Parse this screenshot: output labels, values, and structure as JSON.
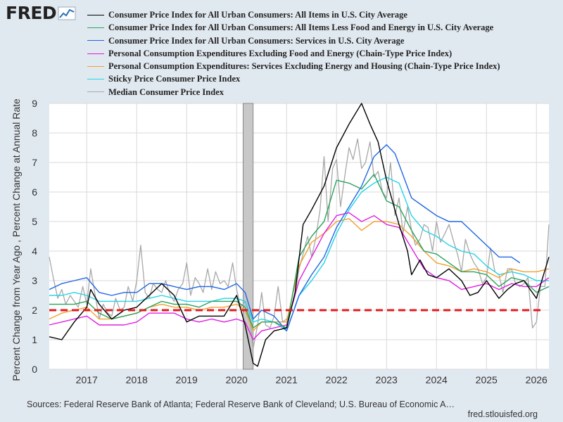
{
  "logo": {
    "text": "FRED",
    "icon": "fred-chart-icon"
  },
  "source": "Sources: Federal Reserve Bank of Atlanta; Federal Reserve Bank of Cleveland; U.S. Bureau of Economic A…",
  "site": "fred.stlouisfed.org",
  "chart_data": {
    "type": "line",
    "title": "",
    "ylabel": "Percent Change from Year Ago , Percent Change at Annual Rate",
    "xlabel": "",
    "ylim": [
      0,
      9
    ],
    "xlim": [
      2016.25,
      2026.25
    ],
    "yticks": [
      "0",
      "1",
      "2",
      "3",
      "4",
      "5",
      "6",
      "7",
      "8",
      "9"
    ],
    "xticks": [
      "2017",
      "2018",
      "2019",
      "2020",
      "2021",
      "2022",
      "2023",
      "2024",
      "2025",
      "2026"
    ],
    "grid": true,
    "legend_position": "top",
    "recession": [
      2020.13,
      2020.33
    ],
    "reference_line": {
      "y": 2,
      "color": "#e41a1c",
      "style": "dashed"
    },
    "series": [
      {
        "name": "Consumer Price Index for All Urban Consumers: All Items in U.S. City Average",
        "color": "#000000",
        "x": [
          2016.25,
          2016.5,
          2016.75,
          2017.0,
          2017.08,
          2017.25,
          2017.5,
          2017.75,
          2018.0,
          2018.25,
          2018.5,
          2018.75,
          2019.0,
          2019.25,
          2019.5,
          2019.75,
          2020.0,
          2020.17,
          2020.33,
          2020.42,
          2020.58,
          2020.75,
          2021.0,
          2021.17,
          2021.33,
          2021.5,
          2021.75,
          2022.0,
          2022.25,
          2022.5,
          2022.67,
          2022.83,
          2023.0,
          2023.25,
          2023.42,
          2023.5,
          2023.67,
          2023.83,
          2024.0,
          2024.25,
          2024.5,
          2024.67,
          2024.83,
          2025.0,
          2025.25,
          2025.42,
          2025.58,
          2025.75,
          2026.0,
          2026.25
        ],
        "y": [
          1.1,
          1.0,
          1.6,
          2.1,
          2.7,
          2.2,
          1.7,
          2.0,
          2.1,
          2.5,
          2.9,
          2.5,
          1.6,
          1.8,
          1.8,
          1.8,
          2.5,
          1.5,
          0.2,
          0.1,
          1.0,
          1.3,
          1.4,
          2.6,
          4.9,
          5.4,
          6.2,
          7.5,
          8.3,
          9.0,
          8.3,
          7.7,
          6.4,
          4.9,
          4.0,
          3.2,
          3.7,
          3.2,
          3.1,
          3.4,
          3.0,
          2.5,
          2.6,
          3.0,
          2.4,
          2.7,
          2.9,
          3.0,
          2.4,
          3.8
        ]
      },
      {
        "name": "Consumer Price Index for All Urban Consumers: All Items Less Food and Energy in U.S. City Average",
        "color": "#2ca25f",
        "x": [
          2016.25,
          2016.5,
          2016.75,
          2017.0,
          2017.25,
          2017.5,
          2017.75,
          2018.0,
          2018.25,
          2018.5,
          2018.75,
          2019.0,
          2019.25,
          2019.5,
          2019.75,
          2020.0,
          2020.17,
          2020.33,
          2020.5,
          2020.75,
          2021.0,
          2021.25,
          2021.5,
          2021.75,
          2022.0,
          2022.25,
          2022.5,
          2022.75,
          2023.0,
          2023.25,
          2023.5,
          2023.75,
          2024.0,
          2024.25,
          2024.5,
          2024.75,
          2025.0,
          2025.25,
          2025.5,
          2025.75,
          2026.0,
          2026.25
        ],
        "y": [
          2.2,
          2.2,
          2.2,
          2.3,
          1.9,
          1.7,
          1.8,
          1.9,
          2.1,
          2.3,
          2.2,
          2.2,
          2.1,
          2.3,
          2.3,
          2.3,
          2.1,
          1.4,
          1.6,
          1.6,
          1.4,
          3.8,
          4.5,
          5.0,
          6.4,
          6.3,
          6.1,
          6.6,
          5.7,
          5.5,
          4.7,
          4.0,
          3.9,
          3.6,
          3.3,
          3.3,
          3.2,
          2.8,
          3.1,
          3.0,
          2.6,
          2.8
        ]
      },
      {
        "name": "Consumer Price Index for All Urban Consumers: Services in U.S. City Average",
        "color": "#1f66e5",
        "x": [
          2016.25,
          2016.5,
          2016.75,
          2017.0,
          2017.25,
          2017.5,
          2017.75,
          2018.0,
          2018.25,
          2018.5,
          2018.75,
          2019.0,
          2019.25,
          2019.5,
          2019.75,
          2020.0,
          2020.17,
          2020.33,
          2020.5,
          2020.75,
          2021.0,
          2021.25,
          2021.5,
          2021.75,
          2022.0,
          2022.25,
          2022.5,
          2022.75,
          2023.0,
          2023.17,
          2023.5,
          2023.75,
          2024.0,
          2024.25,
          2024.5,
          2024.75,
          2025.0,
          2025.25,
          2025.5,
          2025.67
        ],
        "y": [
          2.7,
          2.9,
          3.0,
          3.1,
          2.6,
          2.5,
          2.6,
          2.6,
          2.9,
          2.9,
          2.8,
          2.7,
          2.8,
          2.8,
          2.7,
          2.9,
          2.6,
          1.7,
          2.0,
          1.8,
          1.3,
          2.5,
          3.2,
          3.8,
          4.8,
          5.5,
          6.2,
          7.2,
          7.6,
          7.3,
          5.8,
          5.5,
          5.2,
          5.0,
          5.0,
          4.6,
          4.2,
          3.8,
          3.8,
          3.6
        ]
      },
      {
        "name": "Personal Consumption Expenditures Excluding Food and Energy (Chain-Type Price Index)",
        "color": "#e020e0",
        "x": [
          2016.25,
          2016.5,
          2016.75,
          2017.0,
          2017.25,
          2017.5,
          2017.75,
          2018.0,
          2018.25,
          2018.5,
          2018.75,
          2019.0,
          2019.25,
          2019.5,
          2019.75,
          2020.0,
          2020.17,
          2020.33,
          2020.5,
          2020.75,
          2021.0,
          2021.25,
          2021.5,
          2021.75,
          2022.0,
          2022.25,
          2022.5,
          2022.75,
          2023.0,
          2023.25,
          2023.5,
          2023.75,
          2024.0,
          2024.25,
          2024.5,
          2024.75,
          2025.0,
          2025.25,
          2025.5,
          2025.75,
          2026.0,
          2026.25
        ],
        "y": [
          1.5,
          1.6,
          1.7,
          1.8,
          1.5,
          1.5,
          1.5,
          1.6,
          1.9,
          1.9,
          1.9,
          1.7,
          1.6,
          1.7,
          1.6,
          1.7,
          1.6,
          1.0,
          1.3,
          1.4,
          1.5,
          3.0,
          3.8,
          4.6,
          5.2,
          5.3,
          5.0,
          5.2,
          4.9,
          4.8,
          4.1,
          3.4,
          3.1,
          3.0,
          2.7,
          2.8,
          2.9,
          2.7,
          2.9,
          2.8,
          2.8,
          3.1
        ]
      },
      {
        "name": "Personal Consumption Expenditures: Services Excluding Energy and Housing (Chain-Type Price Index)",
        "color": "#f0a030",
        "x": [
          2016.25,
          2016.5,
          2016.75,
          2017.0,
          2017.25,
          2017.5,
          2017.75,
          2018.0,
          2018.25,
          2018.5,
          2018.75,
          2019.0,
          2019.25,
          2019.5,
          2019.75,
          2020.0,
          2020.17,
          2020.33,
          2020.5,
          2020.75,
          2021.0,
          2021.25,
          2021.5,
          2021.75,
          2022.0,
          2022.25,
          2022.5,
          2022.75,
          2023.0,
          2023.25,
          2023.5,
          2023.75,
          2024.0,
          2024.25,
          2024.5,
          2024.75,
          2025.0,
          2025.25,
          2025.5,
          2025.75,
          2026.0,
          2026.25
        ],
        "y": [
          1.7,
          1.9,
          2.0,
          2.1,
          1.7,
          1.7,
          1.8,
          1.9,
          2.1,
          2.2,
          2.1,
          2.1,
          2.0,
          2.1,
          2.1,
          2.2,
          2.0,
          1.3,
          1.6,
          1.6,
          1.6,
          3.5,
          4.3,
          4.6,
          5.0,
          5.1,
          4.7,
          5.0,
          5.0,
          4.9,
          4.5,
          4.0,
          3.6,
          3.5,
          3.3,
          3.4,
          3.3,
          3.1,
          3.4,
          3.3,
          3.3,
          3.4
        ]
      },
      {
        "name": "Sticky Price Consumer Price Index",
        "color": "#22d4e8",
        "x": [
          2016.25,
          2016.5,
          2016.75,
          2017.0,
          2017.25,
          2017.5,
          2017.75,
          2018.0,
          2018.25,
          2018.5,
          2018.75,
          2019.0,
          2019.25,
          2019.5,
          2019.75,
          2020.0,
          2020.17,
          2020.33,
          2020.5,
          2020.75,
          2021.0,
          2021.25,
          2021.5,
          2021.75,
          2022.0,
          2022.25,
          2022.5,
          2022.75,
          2023.0,
          2023.25,
          2023.5,
          2023.75,
          2024.0,
          2024.25,
          2024.5,
          2024.75,
          2025.0,
          2025.25,
          2025.5,
          2025.75,
          2026.0,
          2026.25
        ],
        "y": [
          2.5,
          2.5,
          2.6,
          2.5,
          2.3,
          2.3,
          2.3,
          2.3,
          2.4,
          2.5,
          2.4,
          2.3,
          2.3,
          2.3,
          2.4,
          2.4,
          2.3,
          1.6,
          1.7,
          1.6,
          1.3,
          2.5,
          3.0,
          3.6,
          4.6,
          5.4,
          6.0,
          6.3,
          6.5,
          6.3,
          5.2,
          4.7,
          4.5,
          4.2,
          4.0,
          3.9,
          3.5,
          3.2,
          3.3,
          3.2,
          3.0,
          3.0
        ]
      },
      {
        "name": "Median Consumer Price Index",
        "color": "#a8a8a8",
        "x": [
          2016.25,
          2016.33,
          2016.42,
          2016.5,
          2016.58,
          2016.67,
          2016.75,
          2016.83,
          2016.92,
          2017.0,
          2017.08,
          2017.17,
          2017.25,
          2017.33,
          2017.42,
          2017.5,
          2017.58,
          2017.67,
          2017.75,
          2017.83,
          2017.92,
          2018.0,
          2018.08,
          2018.17,
          2018.25,
          2018.33,
          2018.42,
          2018.5,
          2018.58,
          2018.67,
          2018.75,
          2018.83,
          2018.92,
          2019.0,
          2019.08,
          2019.17,
          2019.25,
          2019.33,
          2019.42,
          2019.5,
          2019.58,
          2019.67,
          2019.75,
          2019.83,
          2019.92,
          2020.0,
          2020.08,
          2020.17,
          2020.25,
          2020.33,
          2020.42,
          2020.5,
          2020.58,
          2020.67,
          2020.75,
          2020.83,
          2020.92,
          2021.0,
          2021.08,
          2021.17,
          2021.25,
          2021.33,
          2021.42,
          2021.5,
          2021.58,
          2021.67,
          2021.75,
          2021.83,
          2021.92,
          2022.0,
          2022.08,
          2022.17,
          2022.25,
          2022.33,
          2022.42,
          2022.5,
          2022.58,
          2022.67,
          2022.75,
          2022.83,
          2022.92,
          2023.0,
          2023.08,
          2023.17,
          2023.25,
          2023.33,
          2023.42,
          2023.5,
          2023.58,
          2023.67,
          2023.75,
          2023.83,
          2023.92,
          2024.0,
          2024.08,
          2024.17,
          2024.25,
          2024.33,
          2024.42,
          2024.5,
          2024.58,
          2024.67,
          2024.75,
          2024.83,
          2024.92,
          2025.0,
          2025.08,
          2025.17,
          2025.25,
          2025.33,
          2025.42,
          2025.5,
          2025.58,
          2025.67,
          2025.75,
          2025.83,
          2025.92,
          2026.0,
          2026.08,
          2026.17,
          2026.25
        ],
        "y": [
          3.8,
          3.1,
          2.4,
          2.7,
          2.2,
          2.5,
          2.3,
          2.1,
          2.8,
          2.2,
          3.4,
          2.5,
          1.7,
          2.2,
          1.9,
          1.8,
          2.4,
          2.0,
          2.1,
          2.8,
          2.3,
          3.0,
          4.2,
          2.6,
          2.4,
          2.9,
          2.7,
          2.6,
          3.0,
          2.5,
          2.3,
          2.7,
          2.9,
          3.6,
          2.5,
          3.1,
          2.9,
          2.6,
          3.4,
          2.7,
          3.3,
          2.9,
          3.0,
          2.8,
          3.6,
          2.7,
          2.1,
          2.3,
          1.9,
          0.7,
          1.5,
          2.6,
          1.5,
          1.4,
          1.8,
          2.8,
          1.6,
          1.7,
          2.0,
          2.5,
          3.4,
          3.9,
          4.5,
          3.8,
          4.4,
          5.4,
          7.2,
          5.0,
          6.8,
          7.1,
          5.5,
          6.6,
          7.5,
          7.1,
          7.8,
          6.8,
          7.0,
          7.7,
          6.5,
          6.7,
          6.0,
          5.8,
          7.0,
          5.2,
          5.8,
          4.6,
          5.5,
          4.7,
          4.2,
          4.4,
          4.9,
          4.8,
          4.0,
          5.0,
          4.3,
          4.6,
          4.9,
          4.4,
          3.9,
          3.3,
          4.4,
          3.9,
          3.6,
          3.4,
          2.9,
          3.1,
          4.1,
          3.3,
          3.2,
          2.6,
          3.4,
          3.4,
          2.9,
          2.8,
          2.9,
          3.1,
          1.4,
          1.6,
          2.8,
          2.8,
          4.9
        ]
      }
    ]
  }
}
